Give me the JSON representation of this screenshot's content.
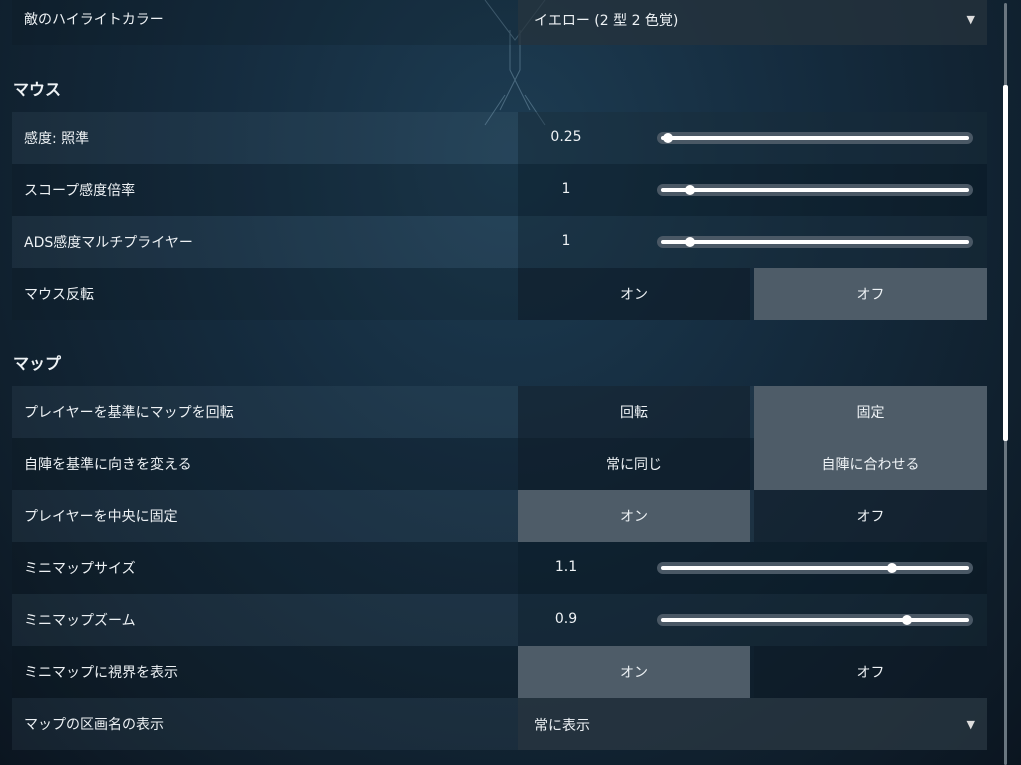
{
  "top_row": {
    "label": "敵のハイライトカラー",
    "value": "イエロー (2 型 2 色覚)",
    "icon": "caret-down-icon"
  },
  "sections": [
    {
      "title": "マウス",
      "rows": [
        {
          "type": "slider",
          "label": "感度: 照準",
          "value": "0.25",
          "fill": 0.02
        },
        {
          "type": "slider",
          "label": "スコープ感度倍率",
          "value": "1",
          "fill": 0.09
        },
        {
          "type": "slider",
          "label": "ADS感度マルチプライヤー",
          "value": "1",
          "fill": 0.09
        },
        {
          "type": "toggle",
          "label": "マウス反転",
          "options": [
            "オン",
            "オフ"
          ],
          "selected": 1
        }
      ]
    },
    {
      "title": "マップ",
      "rows": [
        {
          "type": "toggle",
          "label": "プレイヤーを基準にマップを回転",
          "options": [
            "回転",
            "固定"
          ],
          "selected": 1
        },
        {
          "type": "toggle",
          "label": "自陣を基準に向きを変える",
          "options": [
            "常に同じ",
            "自陣に合わせる"
          ],
          "selected": 1
        },
        {
          "type": "toggle",
          "label": "プレイヤーを中央に固定",
          "options": [
            "オン",
            "オフ"
          ],
          "selected": 0
        },
        {
          "type": "slider",
          "label": "ミニマップサイズ",
          "value": "1.1",
          "fill": 0.75
        },
        {
          "type": "slider",
          "label": "ミニマップズーム",
          "value": "0.9",
          "fill": 0.8
        },
        {
          "type": "toggle",
          "label": "ミニマップに視界を表示",
          "options": [
            "オン",
            "オフ"
          ],
          "selected": 0
        },
        {
          "type": "dropdown",
          "label": "マップの区画名の表示",
          "value": "常に表示",
          "icon": "caret-down-icon"
        }
      ]
    }
  ],
  "scrollbar": {
    "position": 0.11
  }
}
